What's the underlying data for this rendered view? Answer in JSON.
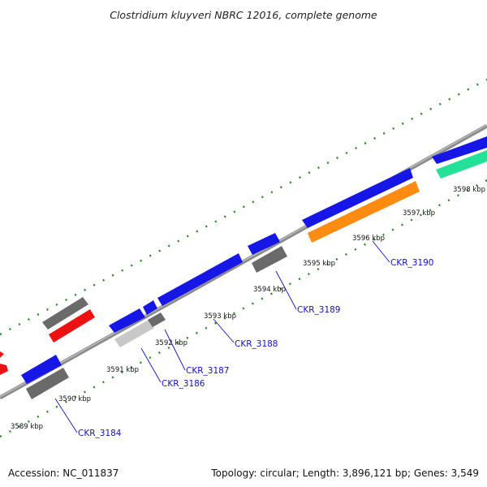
{
  "title": "Clostridium kluyveri NBRC 12016, complete genome",
  "accession": "Accession: NC_011837",
  "summary": "Topology: circular; Length: 3,896,121 bp; Genes: 3,549",
  "colors": {
    "forward_cds": "#1616e6",
    "grey_feature": "#6a6a6a",
    "light_feature": "#c8c8c8",
    "red_feature": "#ee1111",
    "orange_feature": "#ff8c10",
    "teal_feature": "#22e29a",
    "backbone": "#8c8c8c",
    "tick": "#228b22",
    "label": "#1010c8"
  },
  "ruler": {
    "unit": "kbp",
    "labels": [
      "3589 kbp",
      "3590 kbp",
      "3591 kbp",
      "3592 kbp",
      "3593 kbp",
      "3594 kbp",
      "3595 kbp",
      "3596 kbp",
      "3597 kbp",
      "3598 kbp"
    ]
  },
  "gene_labels": [
    "CKR_3184",
    "CKR_3186",
    "CKR_3187",
    "CKR_3188",
    "CKR_3189",
    "CKR_3190"
  ]
}
